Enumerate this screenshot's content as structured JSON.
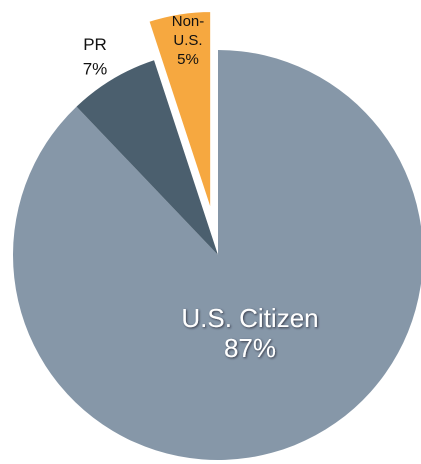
{
  "chart_data": {
    "type": "pie",
    "categories": [
      "U.S. Citizen",
      "PR",
      "Non-U.S."
    ],
    "values": [
      87,
      7,
      5
    ],
    "value_labels": [
      "87%",
      "7%",
      "5%"
    ],
    "colors": [
      "#8697a8",
      "#4b5f6e",
      "#f6a840"
    ],
    "exploded": [
      false,
      false,
      true
    ]
  }
}
